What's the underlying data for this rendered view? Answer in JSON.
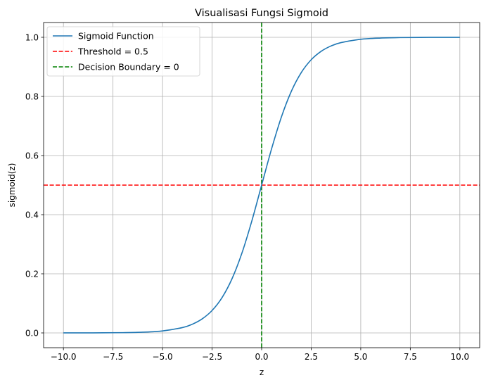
{
  "chart_data": {
    "type": "line",
    "title": "Visualisasi Fungsi Sigmoid",
    "xlabel": "z",
    "ylabel": "sigmoid(z)",
    "xlim": [
      -11,
      11
    ],
    "ylim": [
      -0.05,
      1.05
    ],
    "x_ticks": [
      -10.0,
      -7.5,
      -5.0,
      -2.5,
      0.0,
      2.5,
      5.0,
      7.5,
      10.0
    ],
    "x_tick_labels": [
      "−10.0",
      "−7.5",
      "−5.0",
      "−2.5",
      "0.0",
      "2.5",
      "5.0",
      "7.5",
      "10.0"
    ],
    "y_ticks": [
      0.0,
      0.2,
      0.4,
      0.6,
      0.8,
      1.0
    ],
    "y_tick_labels": [
      "0.0",
      "0.2",
      "0.4",
      "0.6",
      "0.8",
      "1.0"
    ],
    "grid": true,
    "legend_position": "top-left",
    "series": [
      {
        "name": "Sigmoid Function",
        "style": "solid",
        "color": "#1f77b4",
        "x": [
          -10,
          -9,
          -8,
          -7,
          -6,
          -5,
          -4,
          -3.5,
          -3,
          -2.5,
          -2,
          -1.5,
          -1,
          -0.5,
          0,
          0.5,
          1,
          1.5,
          2,
          2.5,
          3,
          3.5,
          4,
          5,
          6,
          7,
          8,
          9,
          10
        ],
        "y": [
          5e-05,
          0.00012,
          0.00034,
          0.00091,
          0.00247,
          0.00669,
          0.01799,
          0.02931,
          0.04743,
          0.07586,
          0.1192,
          0.18243,
          0.26894,
          0.37754,
          0.5,
          0.62246,
          0.73106,
          0.81757,
          0.8808,
          0.92414,
          0.95257,
          0.97069,
          0.98201,
          0.99331,
          0.99753,
          0.99909,
          0.99966,
          0.99988,
          0.99995
        ]
      }
    ],
    "reference_lines": [
      {
        "name": "Threshold = 0.5",
        "orientation": "horizontal",
        "value": 0.5,
        "style": "dashed",
        "color": "#ff0000"
      },
      {
        "name": "Decision Boundary = 0",
        "orientation": "vertical",
        "value": 0,
        "style": "dashed",
        "color": "#008000"
      }
    ]
  }
}
